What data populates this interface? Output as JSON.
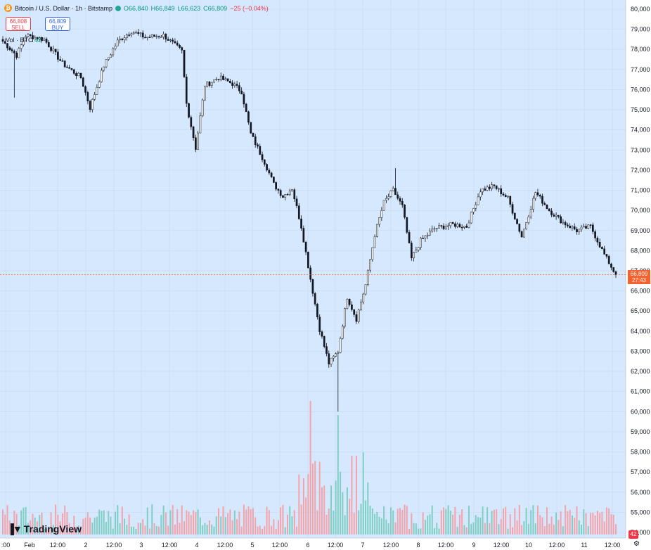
{
  "header": {
    "symbol": "Bitcoin / U.S. Dollar · 1h · Bitstamp",
    "coin_icon": "bitcoin-icon",
    "open": "O66,840",
    "high": "H66,849",
    "low": "L66,623",
    "close": "C66,809",
    "change": "−25 (−0.04%)"
  },
  "trade": {
    "sell_price": "66,808",
    "sell_label": "SELL",
    "buy_price": "66,809",
    "buy_label": "BUY"
  },
  "volume_label": "Vol · BTC",
  "volume_value": "42",
  "collapse_glyph": "^",
  "logo": "TradingView",
  "last_price": "66,809",
  "countdown": "27:43",
  "alerts_badge": "42",
  "colors": {
    "background": "#d6e8fd",
    "up": "#26a69a",
    "down": "#f23645",
    "candle": "#131722",
    "price_tag": "#f7612d"
  },
  "chart_data": {
    "type": "candlestick",
    "ylim": [
      54000,
      80200
    ],
    "y_ticks": [
      "54,000",
      "55,000",
      "56,000",
      "57,000",
      "58,000",
      "59,000",
      "60,000",
      "61,000",
      "62,000",
      "63,000",
      "64,000",
      "65,000",
      "66,000",
      "67,000",
      "68,000",
      "69,000",
      "70,000",
      "71,000",
      "72,000",
      "73,000",
      "74,000",
      "75,000",
      "76,000",
      "77,000",
      "78,000",
      "79,000",
      "80,000"
    ],
    "x_tick_labels": [
      ":00",
      "Feb",
      "12:00",
      "2",
      "12:00",
      "3",
      "12:00",
      "4",
      "12:00",
      "5",
      "12:00",
      "6",
      "12:00",
      "7",
      "12:00",
      "8",
      "12:00",
      "9",
      "12:00",
      "10",
      "12:00",
      "11",
      "12:00"
    ],
    "price_path_keypoints": [
      [
        0,
        78400
      ],
      [
        6,
        77700
      ],
      [
        10,
        78700
      ],
      [
        18,
        78500
      ],
      [
        26,
        77300
      ],
      [
        34,
        76600
      ],
      [
        38,
        75100
      ],
      [
        44,
        77200
      ],
      [
        50,
        78400
      ],
      [
        56,
        78900
      ],
      [
        62,
        78600
      ],
      [
        70,
        78700
      ],
      [
        78,
        77900
      ],
      [
        80,
        75300
      ],
      [
        84,
        73100
      ],
      [
        88,
        76200
      ],
      [
        94,
        76600
      ],
      [
        100,
        76300
      ],
      [
        104,
        75900
      ],
      [
        108,
        73800
      ],
      [
        114,
        72400
      ],
      [
        118,
        71300
      ],
      [
        122,
        70700
      ],
      [
        126,
        71100
      ],
      [
        130,
        69200
      ],
      [
        134,
        66600
      ],
      [
        138,
        64100
      ],
      [
        142,
        62400
      ],
      [
        146,
        63000
      ],
      [
        150,
        65700
      ],
      [
        154,
        64600
      ],
      [
        158,
        66300
      ],
      [
        162,
        68800
      ],
      [
        166,
        70400
      ],
      [
        170,
        71000
      ],
      [
        174,
        70200
      ],
      [
        178,
        67600
      ],
      [
        182,
        68500
      ],
      [
        188,
        69100
      ],
      [
        196,
        69300
      ],
      [
        202,
        69200
      ],
      [
        208,
        71000
      ],
      [
        214,
        71200
      ],
      [
        220,
        70600
      ],
      [
        226,
        68700
      ],
      [
        232,
        70900
      ],
      [
        238,
        70000
      ],
      [
        244,
        69400
      ],
      [
        250,
        69000
      ],
      [
        256,
        69200
      ],
      [
        262,
        67800
      ],
      [
        267,
        66800
      ]
    ],
    "candle_count": 268,
    "series": [
      {
        "name": "Vol · BTC",
        "values": [],
        "last": "42"
      }
    ],
    "grid": true,
    "price_scale_position": "right",
    "time_scale_position": "bottom"
  }
}
